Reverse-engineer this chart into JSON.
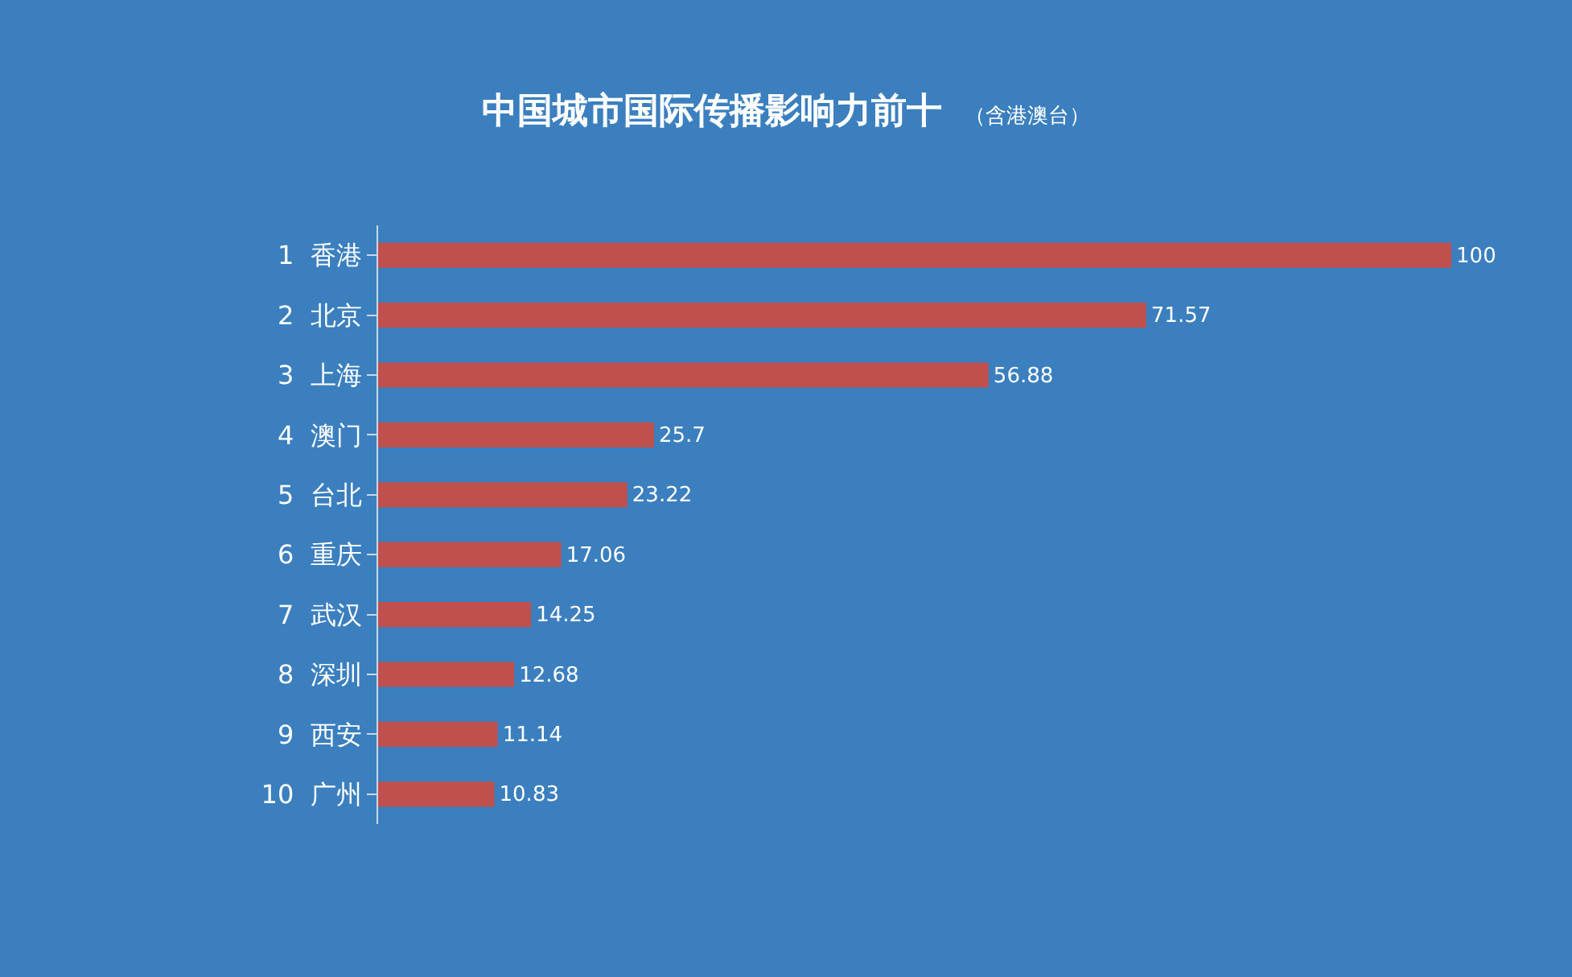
{
  "chart_data": {
    "type": "bar",
    "orientation": "horizontal",
    "title": "中国城市国际传播影响力前十",
    "subtitle": "（含港澳台）",
    "categories": [
      "1  香港",
      "2  北京",
      "3  上海",
      "4  澳门",
      "5  台北",
      "6  重庆",
      "7  武汉",
      "8  深圳",
      "9  西安",
      "10  广州"
    ],
    "values": [
      100,
      71.57,
      56.88,
      25.7,
      23.22,
      17.06,
      14.25,
      12.68,
      11.14,
      10.83
    ],
    "color": "#c0504d",
    "data_labels": true,
    "grid": false,
    "legend": false
  }
}
